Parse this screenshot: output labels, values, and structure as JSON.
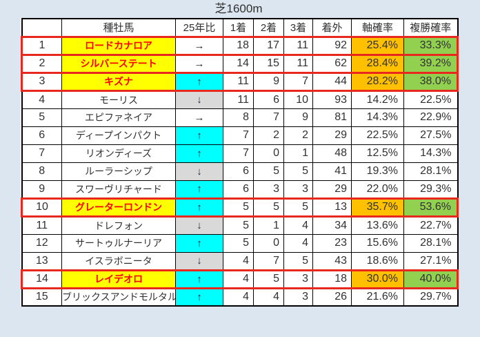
{
  "title": "芝1600m",
  "colors": {
    "page_bg": "#dce6f1",
    "cell_bg": "#ffffff",
    "highlight_yellow": "#ffff00",
    "highlight_red_text": "#ff0000",
    "trend_up_bg": "#00ffff",
    "trend_down_bg": "#d9d9d9",
    "axis_probability_bg": "#ffc000",
    "place_probability_bg": "#92d050",
    "row_border_red": "#e8281e"
  },
  "icons": {
    "trend_up": "↑",
    "trend_down": "↓",
    "trend_flat": "→"
  },
  "table": {
    "headers": [
      "",
      "種牡馬",
      "25年比",
      "1着",
      "2着",
      "3着",
      "着外",
      "軸確率",
      "複勝確率"
    ],
    "rows": [
      {
        "rank": "1",
        "name": "ロードカナロア",
        "trend": "flat",
        "first": "18",
        "second": "17",
        "third": "11",
        "out": "92",
        "axis": "25.4%",
        "place": "33.3%",
        "highlighted": true
      },
      {
        "rank": "2",
        "name": "シルバーステート",
        "trend": "flat",
        "first": "14",
        "second": "15",
        "third": "11",
        "out": "62",
        "axis": "28.4%",
        "place": "39.2%",
        "highlighted": true
      },
      {
        "rank": "3",
        "name": "キズナ",
        "trend": "up",
        "first": "11",
        "second": "9",
        "third": "7",
        "out": "44",
        "axis": "28.2%",
        "place": "38.0%",
        "highlighted": true
      },
      {
        "rank": "4",
        "name": "モーリス",
        "trend": "down",
        "first": "11",
        "second": "6",
        "third": "10",
        "out": "93",
        "axis": "14.2%",
        "place": "22.5%",
        "highlighted": false
      },
      {
        "rank": "5",
        "name": "エピファネイア",
        "trend": "flat",
        "first": "8",
        "second": "7",
        "third": "9",
        "out": "81",
        "axis": "14.3%",
        "place": "22.9%",
        "highlighted": false
      },
      {
        "rank": "6",
        "name": "ディープインパクト",
        "trend": "up",
        "first": "7",
        "second": "2",
        "third": "2",
        "out": "29",
        "axis": "22.5%",
        "place": "27.5%",
        "highlighted": false
      },
      {
        "rank": "7",
        "name": "リオンディーズ",
        "trend": "up",
        "first": "7",
        "second": "0",
        "third": "1",
        "out": "48",
        "axis": "12.5%",
        "place": "14.3%",
        "highlighted": false
      },
      {
        "rank": "8",
        "name": "ルーラーシップ",
        "trend": "down",
        "first": "6",
        "second": "5",
        "third": "5",
        "out": "41",
        "axis": "19.3%",
        "place": "28.1%",
        "highlighted": false
      },
      {
        "rank": "9",
        "name": "スワーヴリチャード",
        "trend": "up",
        "first": "6",
        "second": "3",
        "third": "3",
        "out": "29",
        "axis": "22.0%",
        "place": "29.3%",
        "highlighted": false
      },
      {
        "rank": "10",
        "name": "グレーターロンドン",
        "trend": "up",
        "first": "5",
        "second": "5",
        "third": "5",
        "out": "13",
        "axis": "35.7%",
        "place": "53.6%",
        "highlighted": true
      },
      {
        "rank": "11",
        "name": "ドレフォン",
        "trend": "down",
        "first": "5",
        "second": "1",
        "third": "4",
        "out": "34",
        "axis": "13.6%",
        "place": "22.7%",
        "highlighted": false
      },
      {
        "rank": "12",
        "name": "サートゥルナーリア",
        "trend": "up",
        "first": "5",
        "second": "0",
        "third": "4",
        "out": "23",
        "axis": "15.6%",
        "place": "28.1%",
        "highlighted": false
      },
      {
        "rank": "13",
        "name": "イスラボニータ",
        "trend": "down",
        "first": "4",
        "second": "7",
        "third": "5",
        "out": "43",
        "axis": "18.6%",
        "place": "27.1%",
        "highlighted": false
      },
      {
        "rank": "14",
        "name": "レイデオロ",
        "trend": "up",
        "first": "4",
        "second": "5",
        "third": "3",
        "out": "18",
        "axis": "30.0%",
        "place": "40.0%",
        "highlighted": true
      },
      {
        "rank": "15",
        "name": "ブリックスアンドモルタル",
        "trend": "up",
        "first": "4",
        "second": "4",
        "third": "3",
        "out": "26",
        "axis": "21.6%",
        "place": "29.7%",
        "highlighted": false
      }
    ]
  }
}
